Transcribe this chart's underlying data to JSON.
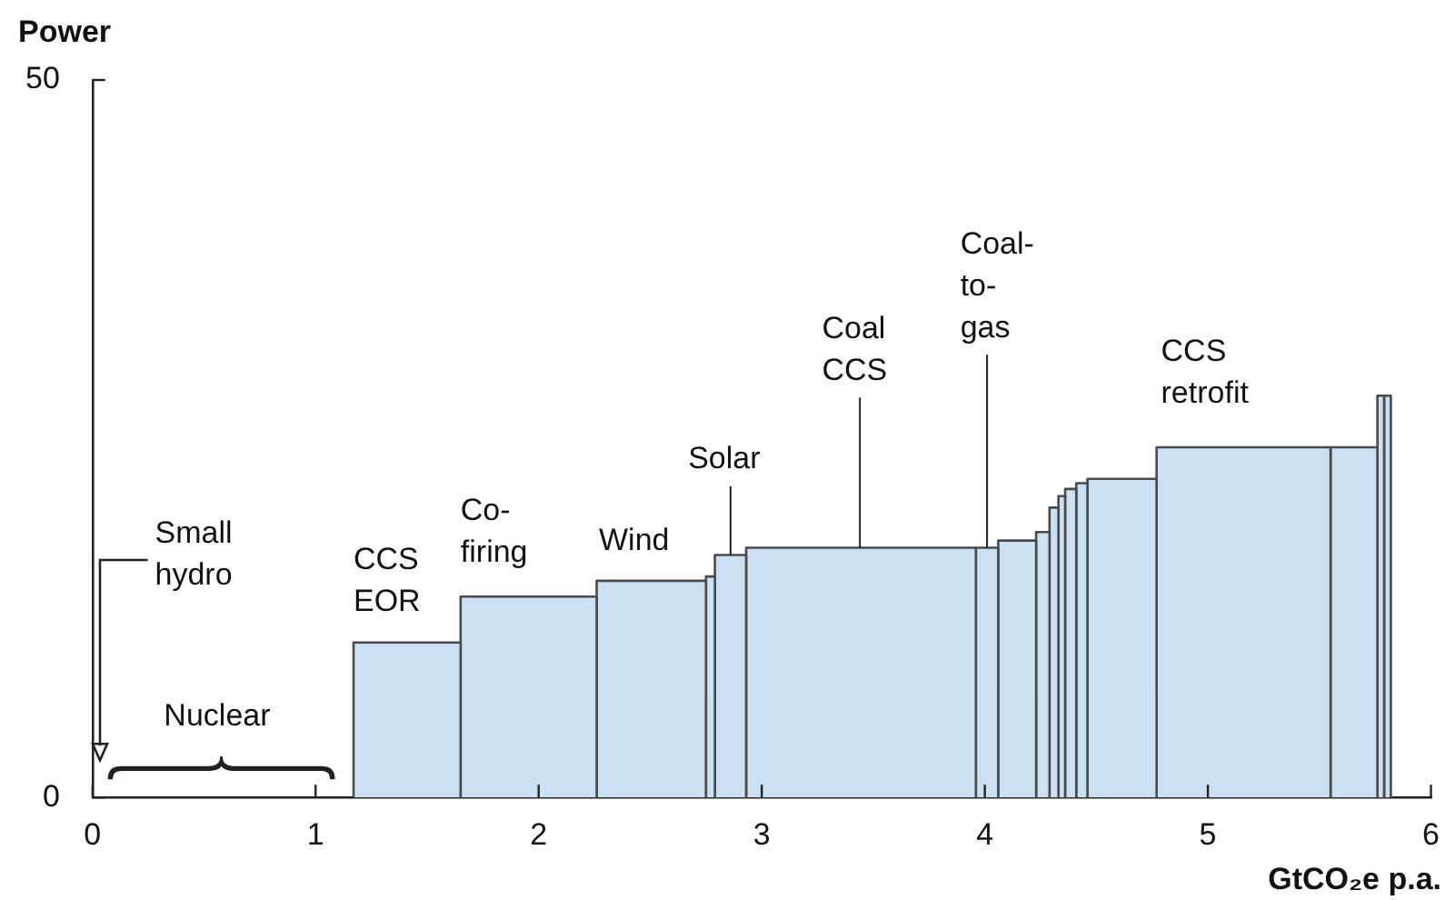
{
  "chart_data": {
    "type": "histogram",
    "ylabel": "Power",
    "xlabel": "GtCO₂e p.a.",
    "bins": [
      1.17,
      1.65,
      2.26,
      2.75,
      2.79,
      2.93,
      3.96,
      4.06,
      4.23,
      4.29,
      4.33,
      4.36,
      4.41,
      4.46,
      4.77,
      5.55,
      5.76,
      5.79,
      5.82
    ],
    "values": [
      10.8,
      14.0,
      15.1,
      15.4,
      16.9,
      17.4,
      17.4,
      17.9,
      18.5,
      20.2,
      21.0,
      21.5,
      21.9,
      22.2,
      24.4,
      24.4,
      28.0,
      28.0
    ],
    "color": "#cce0f3",
    "xlim": [
      0,
      6
    ],
    "xticks": [
      0,
      1,
      2,
      3,
      4,
      5,
      6
    ],
    "ylim": [
      0,
      50
    ],
    "yticks": [
      0,
      50
    ],
    "annotations": [
      "Small hydro",
      "Nuclear",
      "CCS EOR",
      "Co-firing",
      "Wind",
      {
        "text": "Solar",
        "x": 2.86,
        "y": 16.9
      },
      {
        "text": "Coal CCS",
        "x": 3.44,
        "y": 17.4
      },
      {
        "text": "Coal-to-gas",
        "x": 4.01,
        "y": 17.4
      },
      "CCS retrofit"
    ]
  }
}
